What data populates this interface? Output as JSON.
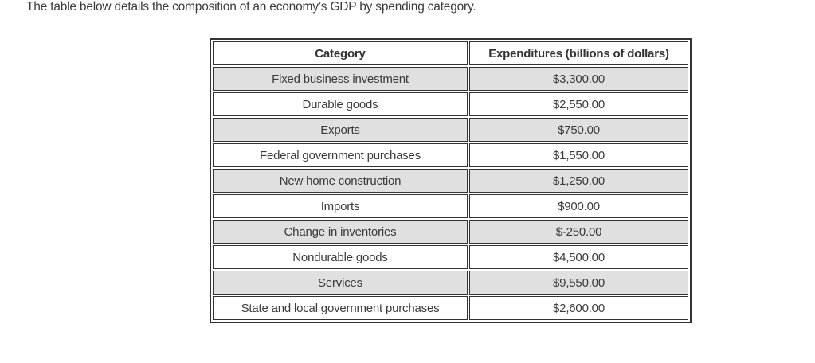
{
  "intro": "The table below details the composition of an economy’s GDP by spending category.",
  "table": {
    "headers": {
      "category": "Category",
      "expenditures": "Expenditures (billions of dollars)"
    },
    "rows": [
      {
        "category": "Fixed business investment",
        "expenditure": "$3,300.00"
      },
      {
        "category": "Durable goods",
        "expenditure": "$2,550.00"
      },
      {
        "category": "Exports",
        "expenditure": "$750.00"
      },
      {
        "category": "Federal government purchases",
        "expenditure": "$1,550.00"
      },
      {
        "category": "New home construction",
        "expenditure": "$1,250.00"
      },
      {
        "category": "Imports",
        "expenditure": "$900.00"
      },
      {
        "category": "Change in inventories",
        "expenditure": "$-250.00"
      },
      {
        "category": "Nondurable goods",
        "expenditure": "$4,500.00"
      },
      {
        "category": "Services",
        "expenditure": "$9,550.00"
      },
      {
        "category": "State and local government purchases",
        "expenditure": "$2,600.00"
      }
    ]
  },
  "colors": {
    "alt_row_bg": "#e0e0e0",
    "border": "#333333",
    "text": "#3b3b3b"
  }
}
